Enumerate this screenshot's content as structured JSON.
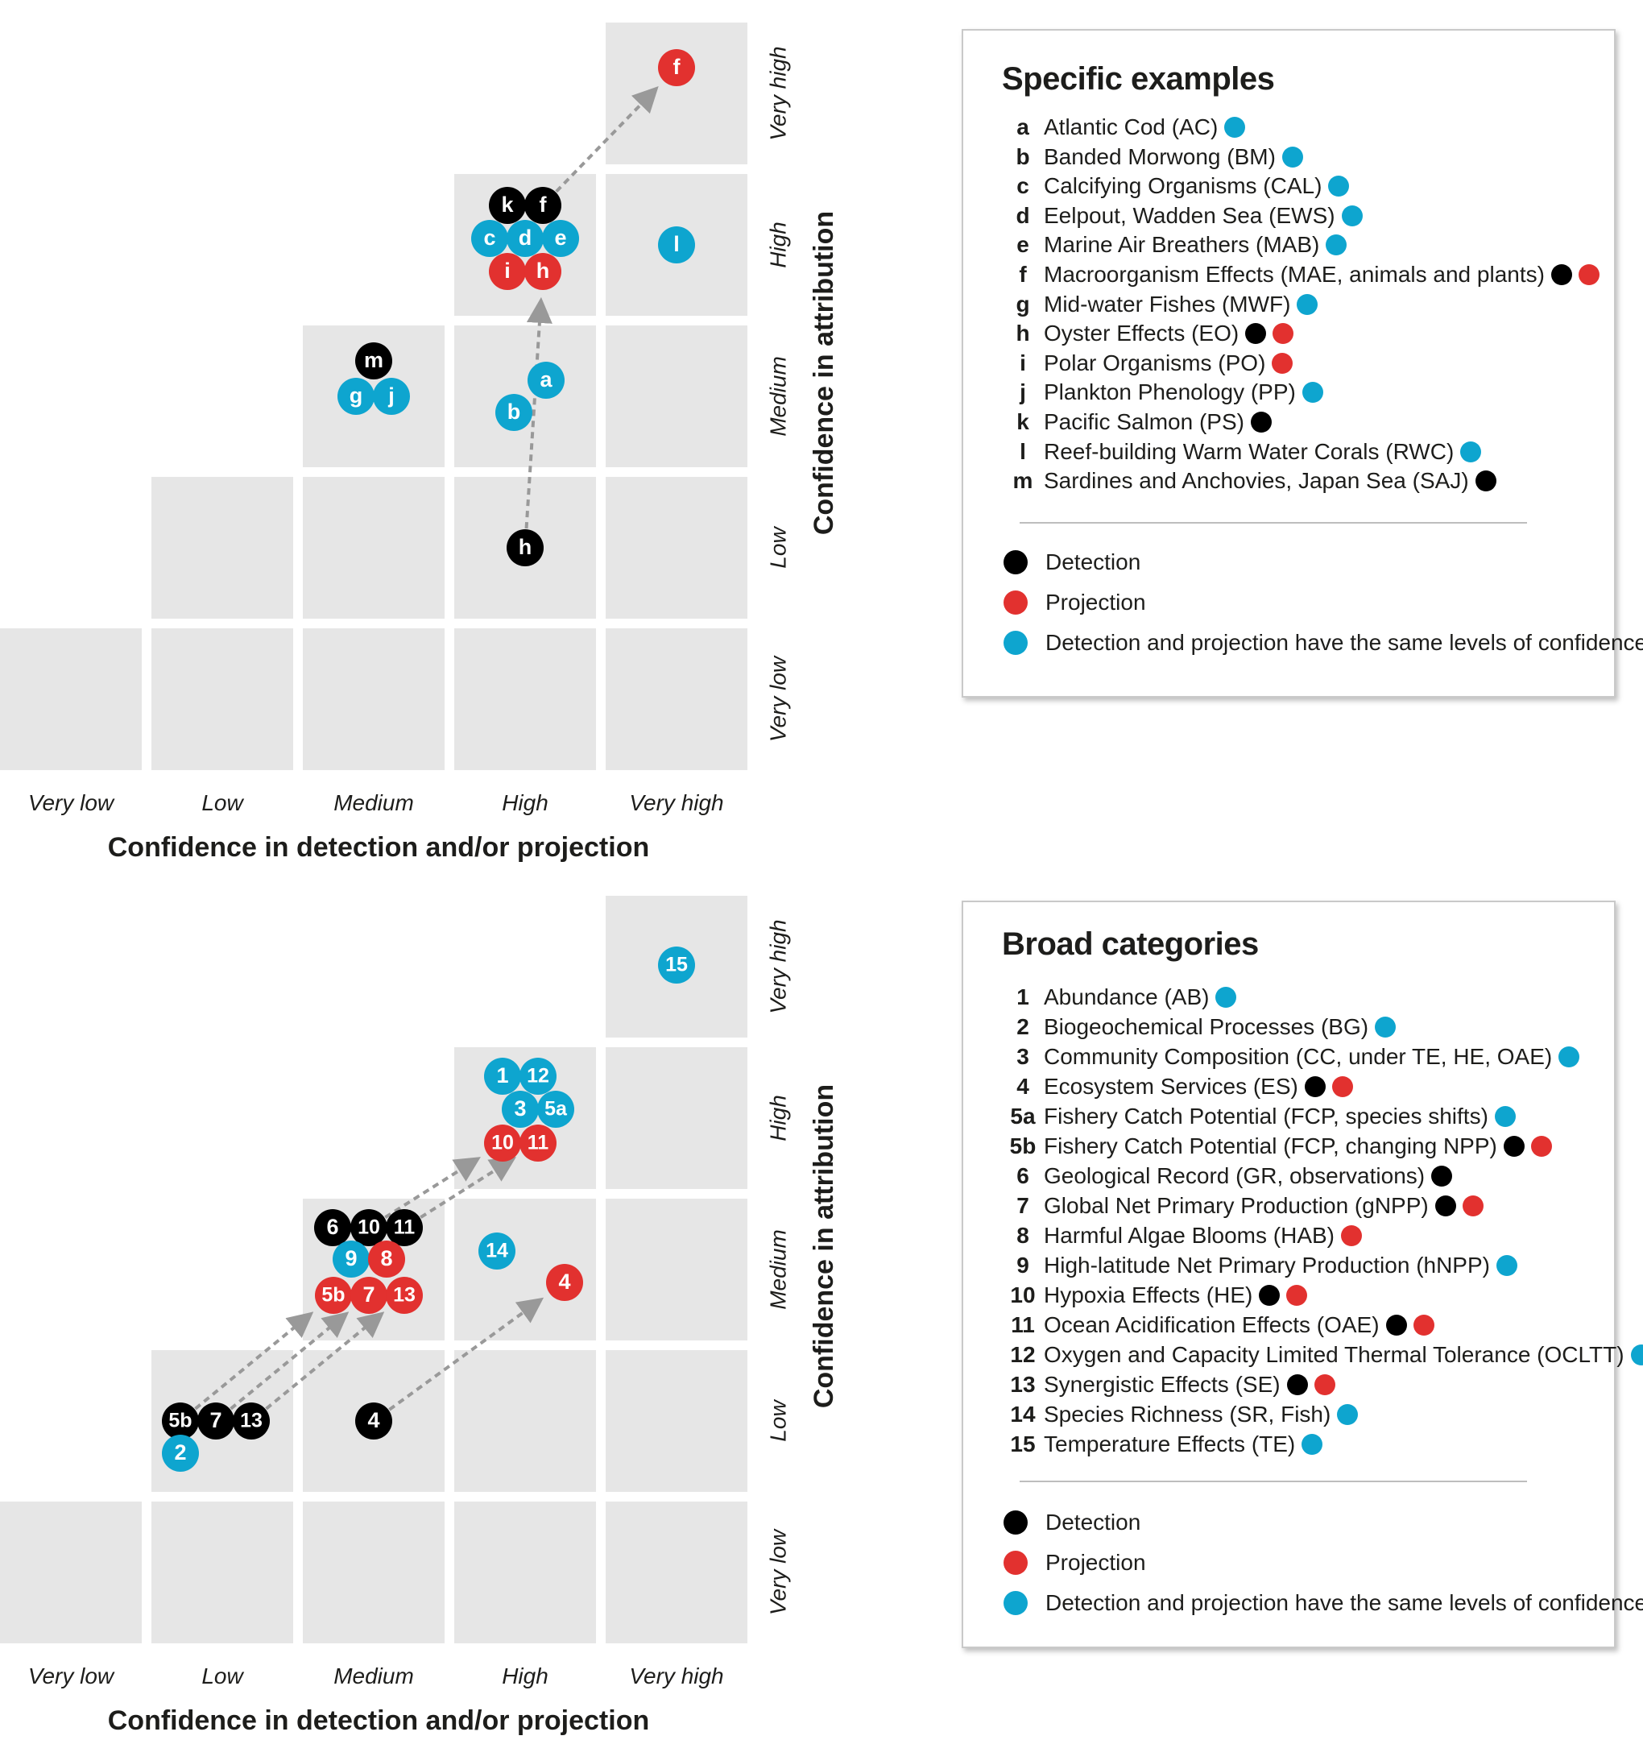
{
  "colors": {
    "cell": "#e6e6e6",
    "detection": "#000000",
    "projection": "#e2312f",
    "same": "#0ea5cf",
    "arrow": "#999999"
  },
  "axes": {
    "levels": [
      "Very low",
      "Low",
      "Medium",
      "High",
      "Very high"
    ],
    "x_title": "Confidence in detection and/or projection",
    "y_title": "Confidence in attribution"
  },
  "panels": [
    {
      "id": "specific",
      "legend_title": "Specific examples",
      "items": [
        {
          "key": "a",
          "label": "Atlantic Cod (AC)",
          "dots": [
            "cyan"
          ]
        },
        {
          "key": "b",
          "label": "Banded Morwong (BM)",
          "dots": [
            "cyan"
          ]
        },
        {
          "key": "c",
          "label": "Calcifying Organisms (CAL)",
          "dots": [
            "cyan"
          ]
        },
        {
          "key": "d",
          "label": "Eelpout, Wadden Sea (EWS)",
          "dots": [
            "cyan"
          ]
        },
        {
          "key": "e",
          "label": "Marine Air Breathers (MAB)",
          "dots": [
            "cyan"
          ]
        },
        {
          "key": "f",
          "label": "Macroorganism Effects (MAE, animals and plants)",
          "dots": [
            "black",
            "red"
          ]
        },
        {
          "key": "g",
          "label": "Mid-water Fishes (MWF)",
          "dots": [
            "cyan"
          ]
        },
        {
          "key": "h",
          "label": "Oyster Effects (EO)",
          "dots": [
            "black",
            "red"
          ]
        },
        {
          "key": "i",
          "label": "Polar Organisms (PO)",
          "dots": [
            "red"
          ]
        },
        {
          "key": "j",
          "label": "Plankton Phenology (PP)",
          "dots": [
            "cyan"
          ]
        },
        {
          "key": "k",
          "label": "Pacific Salmon (PS)",
          "dots": [
            "black"
          ]
        },
        {
          "key": "l",
          "label": "Reef-building Warm Water Corals (RWC)",
          "dots": [
            "cyan"
          ]
        },
        {
          "key": "m",
          "label": "Sardines and Anchovies, Japan Sea (SAJ)",
          "dots": [
            "black"
          ]
        }
      ],
      "markers": [
        {
          "t": "f",
          "c": "red",
          "x": 4,
          "y": 4
        },
        {
          "t": "k",
          "c": "black",
          "x": 3,
          "y": 3
        },
        {
          "t": "f",
          "c": "black",
          "x": 3,
          "y": 3
        },
        {
          "t": "c",
          "c": "cyan",
          "x": 3,
          "y": 3
        },
        {
          "t": "d",
          "c": "cyan",
          "x": 3,
          "y": 3
        },
        {
          "t": "e",
          "c": "cyan",
          "x": 3,
          "y": 3
        },
        {
          "t": "i",
          "c": "red",
          "x": 3,
          "y": 3
        },
        {
          "t": "h",
          "c": "red",
          "x": 3,
          "y": 3
        },
        {
          "t": "l",
          "c": "cyan",
          "x": 4,
          "y": 3
        },
        {
          "t": "m",
          "c": "black",
          "x": 2,
          "y": 2
        },
        {
          "t": "g",
          "c": "cyan",
          "x": 2,
          "y": 2
        },
        {
          "t": "j",
          "c": "cyan",
          "x": 2,
          "y": 2
        },
        {
          "t": "a",
          "c": "cyan",
          "x": 3,
          "y": 2
        },
        {
          "t": "b",
          "c": "cyan",
          "x": 3,
          "y": 2
        },
        {
          "t": "h",
          "c": "black",
          "x": 3,
          "y": 1
        }
      ],
      "arrows": [
        {
          "from": "f-black",
          "to": "f-red"
        },
        {
          "from": "h-black",
          "to": "h-red"
        }
      ]
    },
    {
      "id": "broad",
      "legend_title": "Broad categories",
      "items": [
        {
          "key": "1",
          "label": "Abundance (AB)",
          "dots": [
            "cyan"
          ]
        },
        {
          "key": "2",
          "label": "Biogeochemical Processes (BG)",
          "dots": [
            "cyan"
          ]
        },
        {
          "key": "3",
          "label": "Community Composition (CC, under TE, HE, OAE)",
          "dots": [
            "cyan"
          ]
        },
        {
          "key": "4",
          "label": "Ecosystem Services (ES)",
          "dots": [
            "black",
            "red"
          ]
        },
        {
          "key": "5a",
          "label": "Fishery Catch Potential (FCP, species shifts)",
          "dots": [
            "cyan"
          ]
        },
        {
          "key": "5b",
          "label": "Fishery Catch Potential (FCP, changing NPP)",
          "dots": [
            "black",
            "red"
          ]
        },
        {
          "key": "6",
          "label": "Geological Record (GR, observations)",
          "dots": [
            "black"
          ]
        },
        {
          "key": "7",
          "label": "Global Net Primary Production (gNPP)",
          "dots": [
            "black",
            "red"
          ]
        },
        {
          "key": "8",
          "label": "Harmful Algae Blooms (HAB)",
          "dots": [
            "red"
          ]
        },
        {
          "key": "9",
          "label": "High-latitude Net Primary Production (hNPP)",
          "dots": [
            "cyan"
          ]
        },
        {
          "key": "10",
          "label": "Hypoxia Effects (HE)",
          "dots": [
            "black",
            "red"
          ]
        },
        {
          "key": "11",
          "label": "Ocean Acidification Effects (OAE)",
          "dots": [
            "black",
            "red"
          ]
        },
        {
          "key": "12",
          "label": "Oxygen and Capacity Limited Thermal Tolerance (OCLTT)",
          "dots": [
            "cyan"
          ]
        },
        {
          "key": "13",
          "label": "Synergistic Effects (SE)",
          "dots": [
            "black",
            "red"
          ]
        },
        {
          "key": "14",
          "label": "Species Richness (SR, Fish)",
          "dots": [
            "cyan"
          ]
        },
        {
          "key": "15",
          "label": "Temperature Effects (TE)",
          "dots": [
            "cyan"
          ]
        }
      ],
      "markers": [
        {
          "t": "15",
          "c": "cyan",
          "x": 4,
          "y": 4
        },
        {
          "t": "1",
          "c": "cyan",
          "x": 3,
          "y": 3
        },
        {
          "t": "12",
          "c": "cyan",
          "x": 3,
          "y": 3
        },
        {
          "t": "3",
          "c": "cyan",
          "x": 3,
          "y": 3
        },
        {
          "t": "5a",
          "c": "cyan",
          "x": 3,
          "y": 3
        },
        {
          "t": "10",
          "c": "red",
          "x": 3,
          "y": 3
        },
        {
          "t": "11",
          "c": "red",
          "x": 3,
          "y": 3
        },
        {
          "t": "6",
          "c": "black",
          "x": 2,
          "y": 2
        },
        {
          "t": "10",
          "c": "black",
          "x": 2,
          "y": 2
        },
        {
          "t": "11",
          "c": "black",
          "x": 2,
          "y": 2
        },
        {
          "t": "9",
          "c": "cyan",
          "x": 2,
          "y": 2
        },
        {
          "t": "8",
          "c": "red",
          "x": 2,
          "y": 2
        },
        {
          "t": "5b",
          "c": "red",
          "x": 2,
          "y": 2
        },
        {
          "t": "7",
          "c": "red",
          "x": 2,
          "y": 2
        },
        {
          "t": "13",
          "c": "red",
          "x": 2,
          "y": 2
        },
        {
          "t": "14",
          "c": "cyan",
          "x": 3,
          "y": 2
        },
        {
          "t": "4",
          "c": "red",
          "x": 3,
          "y": 2
        },
        {
          "t": "5b",
          "c": "black",
          "x": 1,
          "y": 1
        },
        {
          "t": "7",
          "c": "black",
          "x": 1,
          "y": 1
        },
        {
          "t": "13",
          "c": "black",
          "x": 1,
          "y": 1
        },
        {
          "t": "2",
          "c": "cyan",
          "x": 1,
          "y": 1
        },
        {
          "t": "4",
          "c": "black",
          "x": 2,
          "y": 1
        }
      ],
      "arrows": [
        {
          "from": "10-black",
          "to": "10-red"
        },
        {
          "from": "11-black",
          "to": "11-red"
        },
        {
          "from": "5b-black",
          "to": "5b-red"
        },
        {
          "from": "7-black",
          "to": "7-red"
        },
        {
          "from": "13-black",
          "to": "13-red"
        },
        {
          "from": "4-black",
          "to": "4-red"
        }
      ]
    }
  ],
  "kinds": [
    {
      "color": "black",
      "label": "Detection"
    },
    {
      "color": "red",
      "label": "Projection"
    },
    {
      "color": "cyan",
      "label": "Detection and projection have the same levels of confidence"
    }
  ]
}
